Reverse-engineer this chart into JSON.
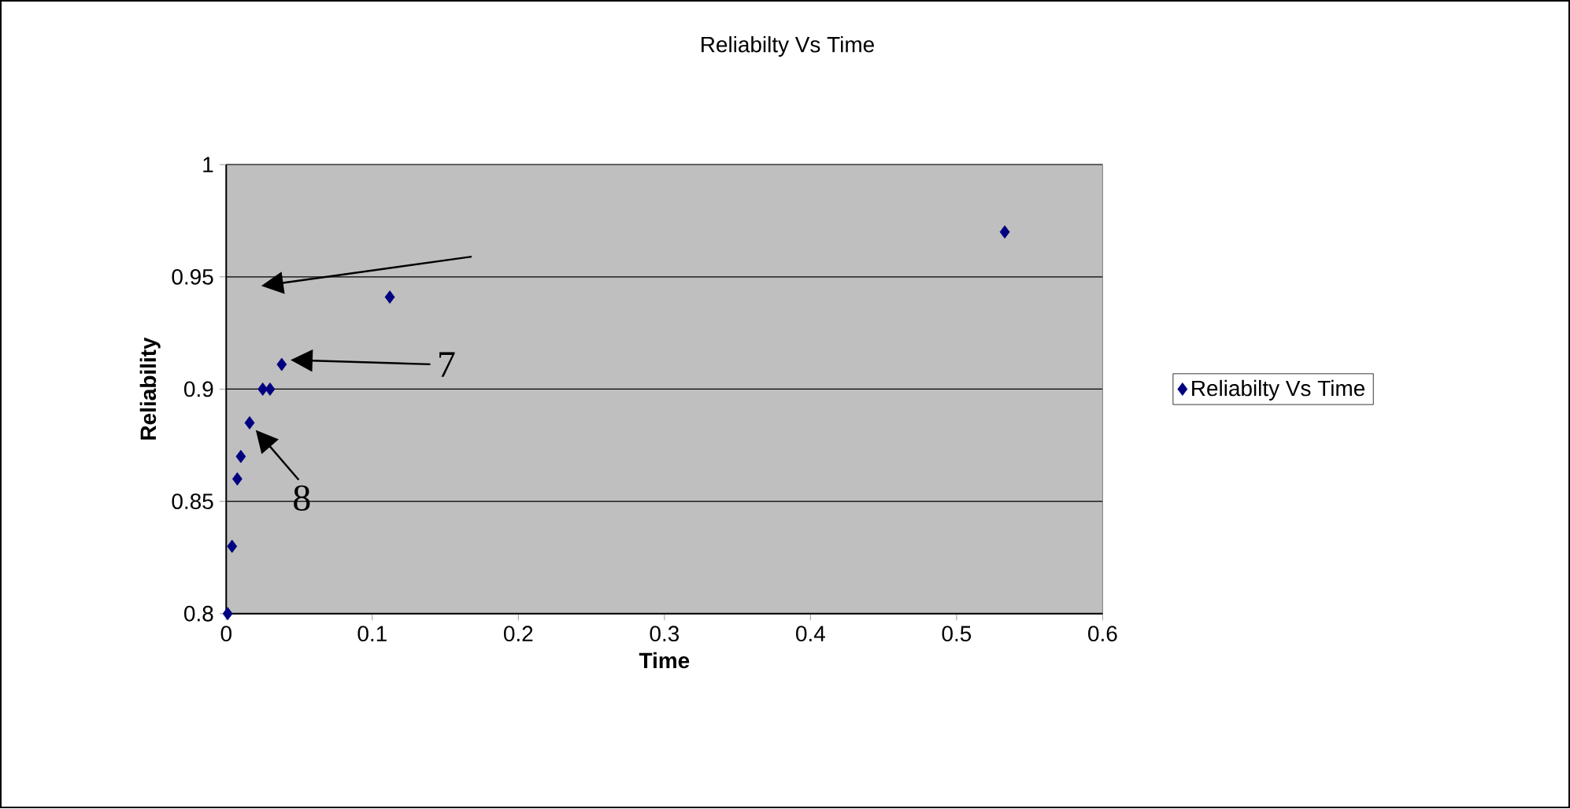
{
  "chart_data": {
    "type": "scatter",
    "title": "Reliabilty Vs Time",
    "xlabel": "Time",
    "ylabel": "Reliability",
    "x": [
      0.001,
      0.004,
      0.0076,
      0.01,
      0.016,
      0.025,
      0.03,
      0.038,
      0.112,
      0.533
    ],
    "series": [
      {
        "name": "Reliabilty Vs Time",
        "color": "#000080",
        "values": [
          0.8,
          0.83,
          0.86,
          0.87,
          0.885,
          0.9,
          0.9,
          0.911,
          0.941,
          0.97
        ]
      }
    ],
    "xlim": [
      0,
      0.6
    ],
    "ylim": [
      0.8,
      1
    ],
    "xticks": [
      0,
      0.1,
      0.2,
      0.3,
      0.4,
      0.5,
      0.6
    ],
    "yticks": [
      0.8,
      0.85,
      0.9,
      0.95,
      1
    ],
    "grid": "y",
    "legend": "right",
    "marker": "diamond",
    "annotations": [
      "7",
      {
        "text": "8",
        "x": 0.016,
        "y": 0.885
      }
    ]
  }
}
